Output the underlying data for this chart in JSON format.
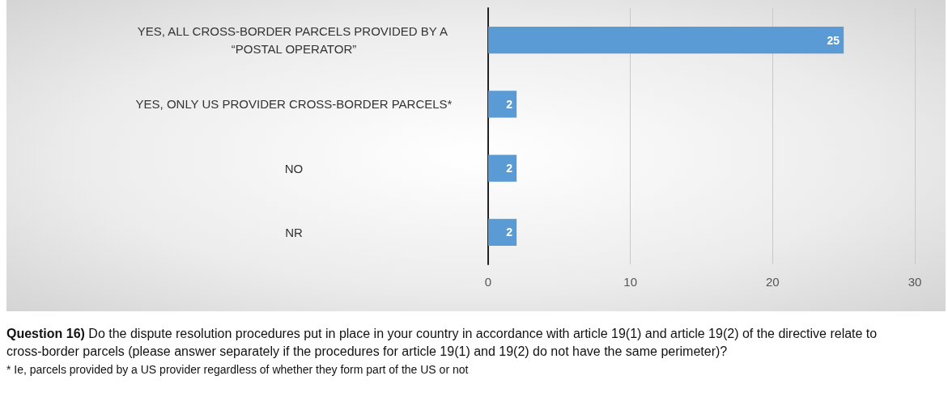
{
  "chart_data": {
    "type": "bar",
    "orientation": "horizontal",
    "categories": [
      "YES, ALL CROSS-BORDER PARCELS PROVIDED BY A “POSTAL OPERATOR”",
      "YES, ONLY US PROVIDER CROSS-BORDER PARCELS*",
      "NO",
      "NR"
    ],
    "values": [
      25,
      2,
      2,
      2
    ],
    "color": "#5b9bd5",
    "xlim": [
      0,
      30
    ],
    "xticks": [
      0,
      10,
      20,
      30
    ],
    "grid": "x",
    "data_labels": true,
    "annotations": [
      "Question 16) Do the dispute resolution procedures put in place in your country in accordance with article 19(1) and article 19(2) of the directive relate to cross-border parcels (please answer separately if the procedures for article 19(1) and 19(2) do not have the same perimeter)?",
      "* Ie, parcels provided by a US provider regardless of whether they form part of the US or not"
    ]
  }
}
